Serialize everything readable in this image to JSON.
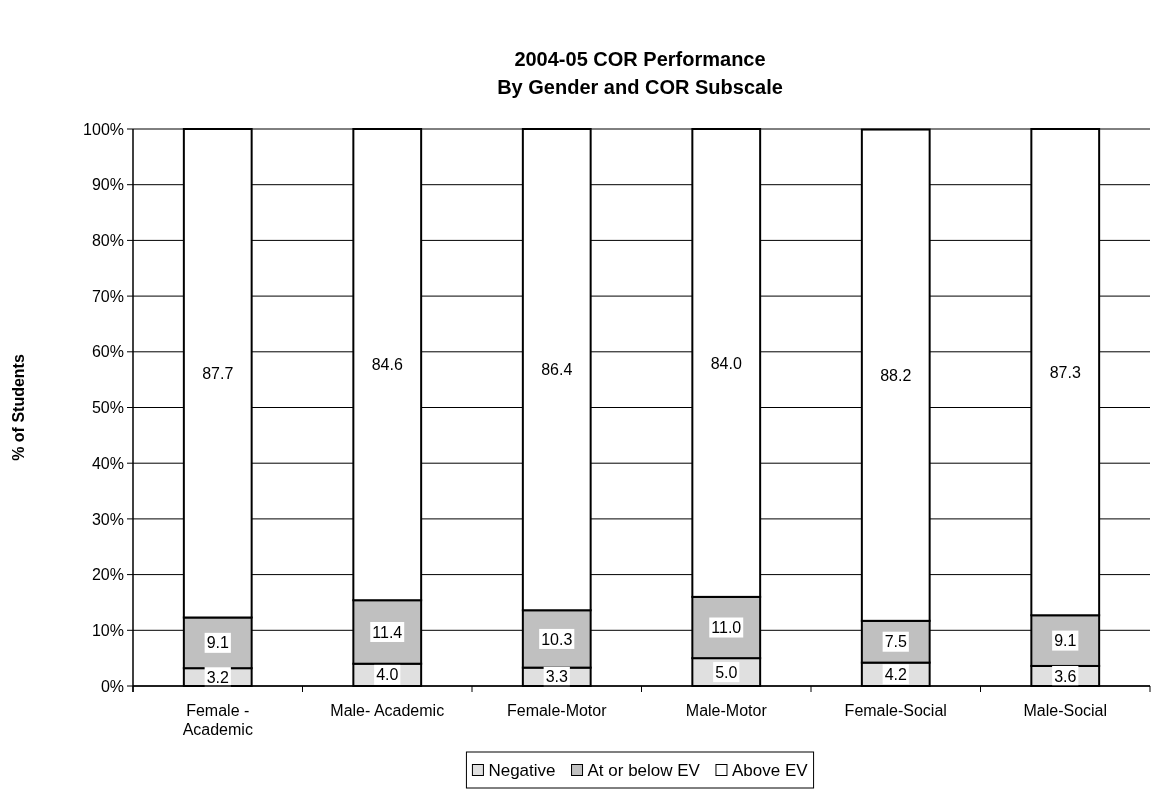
{
  "chart_data": {
    "type": "bar",
    "title": "2004-05 COR Performance",
    "subtitle": "By Gender and COR Subscale",
    "ylabel": "% of Students",
    "categories": [
      "Female - Academic",
      "Male- Academic",
      "Female-Motor",
      "Male-Motor",
      "Female-Social",
      "Male-Social"
    ],
    "series": [
      {
        "name": "Negative",
        "color": "#e0e0e0",
        "values": [
          3.2,
          4.0,
          3.3,
          5.0,
          4.2,
          3.6
        ],
        "value_labels": [
          "3.2",
          "4.0",
          "3.3",
          "5.0",
          "4.2",
          "3.6"
        ]
      },
      {
        "name": "At or below EV",
        "color": "#c0c0c0",
        "values": [
          9.1,
          11.4,
          10.3,
          11.0,
          7.5,
          9.1
        ],
        "value_labels": [
          "9.1",
          "11.4",
          "10.3",
          "11.0",
          "7.5",
          "9.1"
        ]
      },
      {
        "name": "Above EV",
        "color": "#ffffff",
        "values": [
          87.7,
          84.6,
          86.4,
          84.0,
          88.2,
          87.3
        ],
        "value_labels": [
          "87.7",
          "84.6",
          "86.4",
          "84.0",
          "88.2",
          "87.3"
        ]
      }
    ],
    "stacked": true,
    "ylim": [
      0,
      100
    ],
    "yticks": [
      {
        "value": 0,
        "label": "0%"
      },
      {
        "value": 10,
        "label": "10%"
      },
      {
        "value": 20,
        "label": "20%"
      },
      {
        "value": 30,
        "label": "30%"
      },
      {
        "value": 40,
        "label": "40%"
      },
      {
        "value": 50,
        "label": "50%"
      },
      {
        "value": 60,
        "label": "60%"
      },
      {
        "value": 70,
        "label": "70%"
      },
      {
        "value": 80,
        "label": "80%"
      },
      {
        "value": 90,
        "label": "90%"
      },
      {
        "value": 100,
        "label": "100%"
      }
    ],
    "grid": "y",
    "legend": "bottom"
  }
}
